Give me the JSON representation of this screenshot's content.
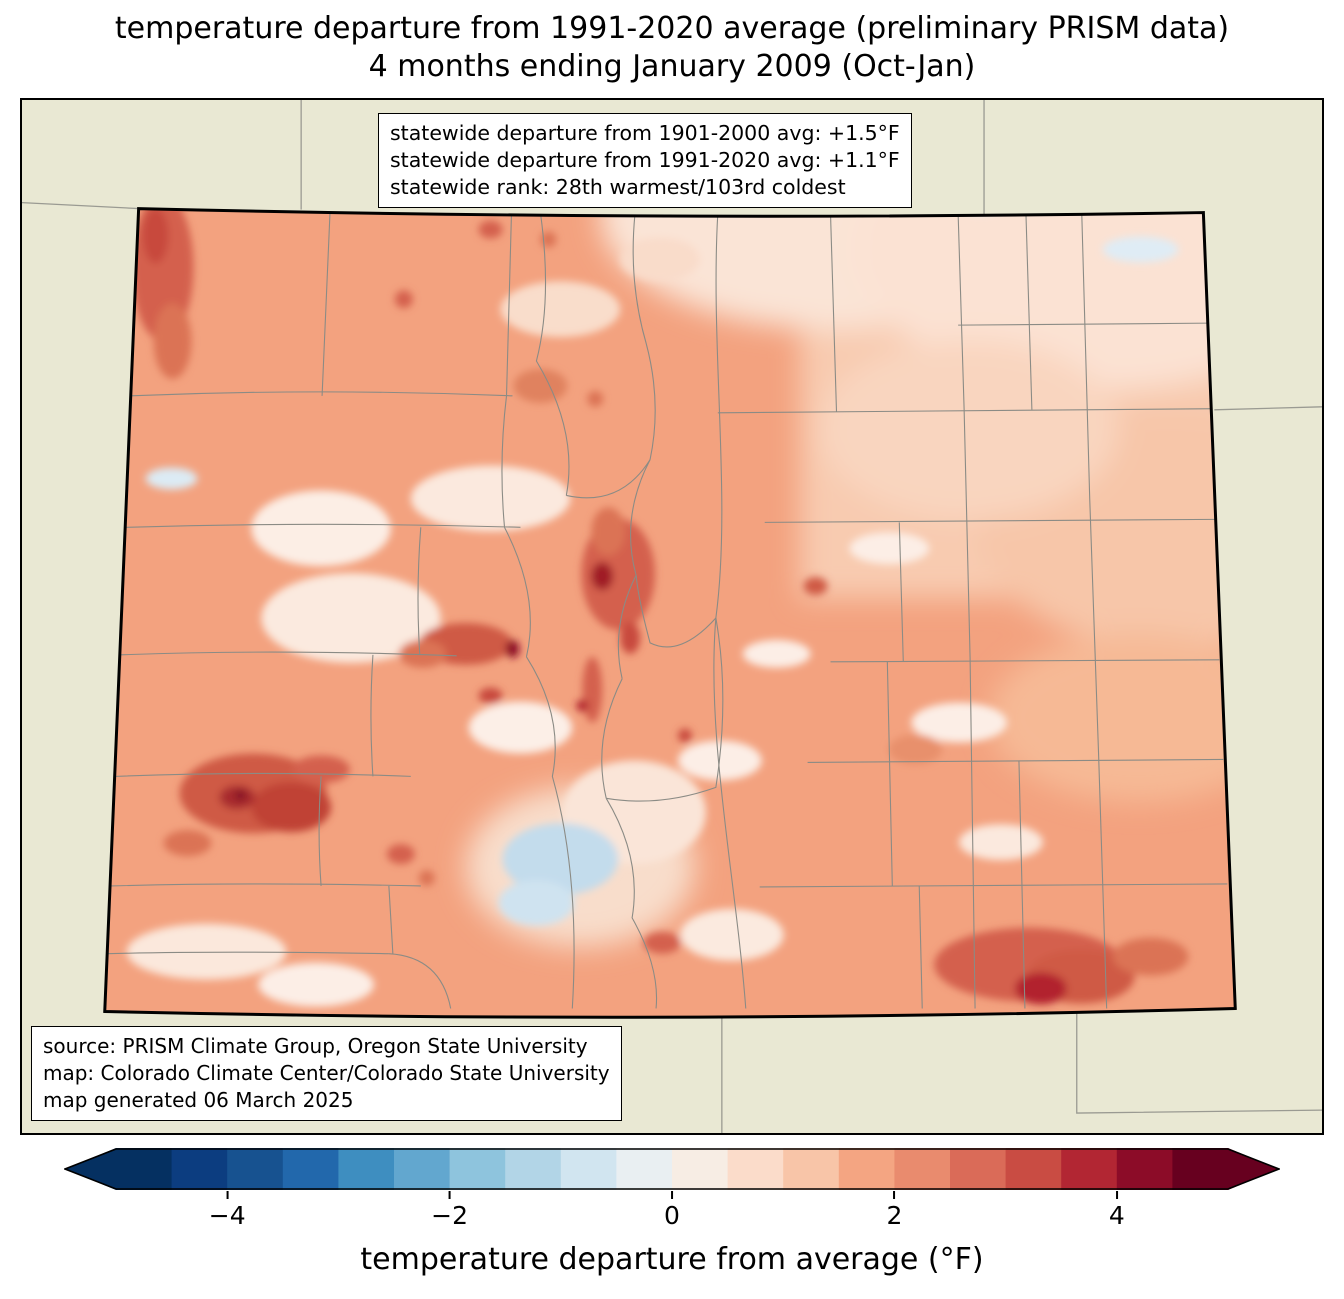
{
  "title": {
    "line1": "temperature departure from 1991-2020 average (preliminary PRISM data)",
    "line2": "4 months ending January 2009 (Oct-Jan)"
  },
  "stats_box": {
    "lines": [
      "statewide departure from 1901-2000 avg: +1.5°F",
      "statewide departure from 1991-2020 avg: +1.1°F",
      "statewide rank: 28th warmest/103rd coldest"
    ]
  },
  "source_box": {
    "lines": [
      "source: PRISM Climate Group, Oregon State University",
      "map: Colorado Climate Center/Colorado State University",
      "map generated 06 March 2025"
    ]
  },
  "colorbar": {
    "label": "temperature departure from average (°F)",
    "range_min": -5,
    "range_max": 5,
    "ticks": [
      {
        "label": "−4",
        "value": -4
      },
      {
        "label": "−2",
        "value": -2
      },
      {
        "label": "0",
        "value": 0
      },
      {
        "label": "2",
        "value": 2
      },
      {
        "label": "4",
        "value": 4
      }
    ],
    "under_color": "#053061",
    "over_color": "#67001f",
    "colors": [
      "#053061",
      "#0c3d80",
      "#175290",
      "#2268ac",
      "#3e8ec0",
      "#62a7cf",
      "#8ec4dd",
      "#b2d5e7",
      "#d1e5f0",
      "#e9eff2",
      "#f7ede4",
      "#fbdcca",
      "#f8c5a8",
      "#f4a582",
      "#e98b6e",
      "#da6b58",
      "#c94c43",
      "#b22633",
      "#8c0c28",
      "#67001f"
    ]
  },
  "map": {
    "background_color": "#e9e8d3",
    "state_border_color": "#000000",
    "county_border_color": "#8b8b85",
    "neighbor_border_color": "#9a9a92",
    "base_anomaly_color": "#f3a27f"
  }
}
